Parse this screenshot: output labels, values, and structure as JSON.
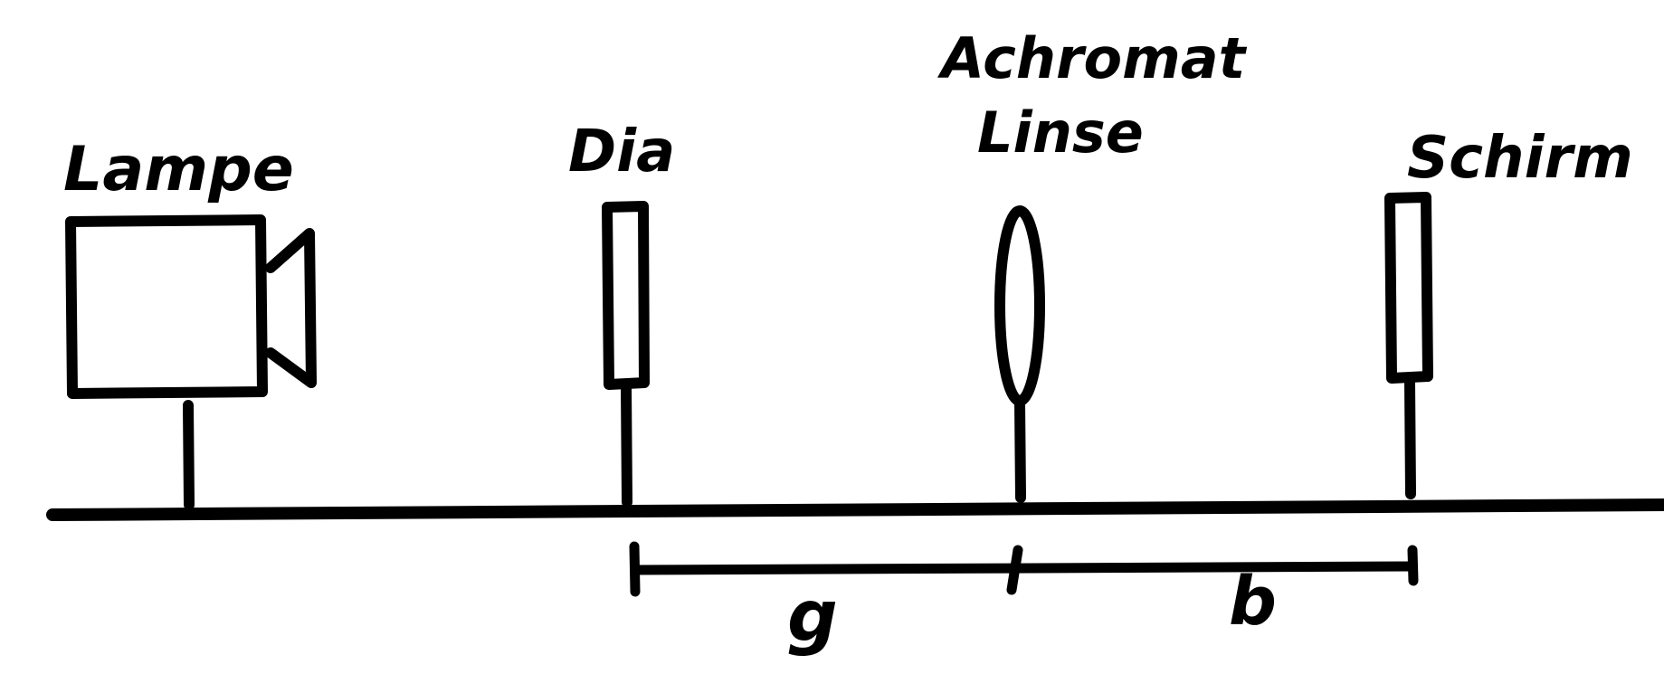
{
  "colors": {
    "ink": "#000000",
    "background": "#ffffff"
  },
  "labels": {
    "lamp": "Lampe",
    "slide": "Dia",
    "lens_line1": "Achromat",
    "lens_line2": "Linse",
    "screen": "Schirm",
    "object_distance": "g",
    "image_distance": "b"
  },
  "icons": {
    "lamp": "lamp-housing-icon",
    "slide": "slide-holder-icon",
    "lens": "convex-lens-icon",
    "screen": "screen-icon"
  }
}
